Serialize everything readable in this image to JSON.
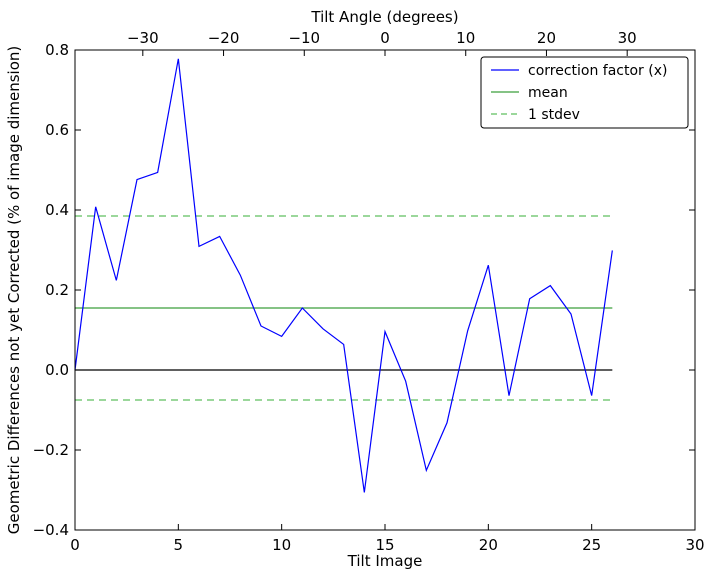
{
  "chart_data": {
    "type": "line",
    "xlabel": "Tilt Image",
    "ylabel": "Geometric Differences not yet Corrected (% of image dimension)",
    "top_xlabel": "Tilt Angle (degrees)",
    "xlim": [
      0,
      30
    ],
    "ylim": [
      -0.4,
      0.8
    ],
    "x_ticks": [
      "0",
      "5",
      "10",
      "15",
      "20",
      "25",
      "30"
    ],
    "y_ticks": [
      "−0.4",
      "−0.2",
      "0.0",
      "0.2",
      "0.4",
      "0.6",
      "0.8"
    ],
    "top_ticks": [
      {
        "label": "−30",
        "value": -30
      },
      {
        "label": "−20",
        "value": -20
      },
      {
        "label": "−10",
        "value": -10
      },
      {
        "label": "0",
        "value": 0
      },
      {
        "label": "10",
        "value": 10
      },
      {
        "label": "20",
        "value": 20
      },
      {
        "label": "30",
        "value": 30
      }
    ],
    "top_axis_range": [
      -38.4,
      38.4
    ],
    "series": [
      {
        "name": "correction factor (x)",
        "color": "#0000ff",
        "style": "solid",
        "x": [
          0,
          1,
          2,
          3,
          4,
          5,
          6,
          7,
          8,
          9,
          10,
          11,
          12,
          13,
          14,
          15,
          16,
          17,
          18,
          19,
          20,
          21,
          22,
          23,
          24,
          25,
          26
        ],
        "y": [
          0.0,
          0.408,
          0.224,
          0.476,
          0.494,
          0.778,
          0.309,
          0.334,
          0.237,
          0.11,
          0.084,
          0.155,
          0.103,
          0.064,
          -0.306,
          0.096,
          -0.028,
          -0.251,
          -0.132,
          0.098,
          0.262,
          -0.064,
          0.178,
          0.211,
          0.14,
          -0.064,
          0.299
        ]
      },
      {
        "name": "mean",
        "color": "#3c9f3c",
        "style": "solid",
        "x": [
          0,
          26
        ],
        "y": [
          0.155,
          0.155
        ]
      },
      {
        "name": "1 stdev",
        "color": "#5fbf5f",
        "style": "dashed",
        "x": [
          0,
          26
        ],
        "y": [
          0.385,
          0.385
        ],
        "x2": [
          0,
          26
        ],
        "y2": [
          -0.075,
          -0.075
        ]
      }
    ],
    "zero_line": {
      "x": [
        0,
        26
      ],
      "y": [
        0,
        0
      ],
      "color": "#000000"
    },
    "legend_position": "top-right",
    "grid": false
  }
}
